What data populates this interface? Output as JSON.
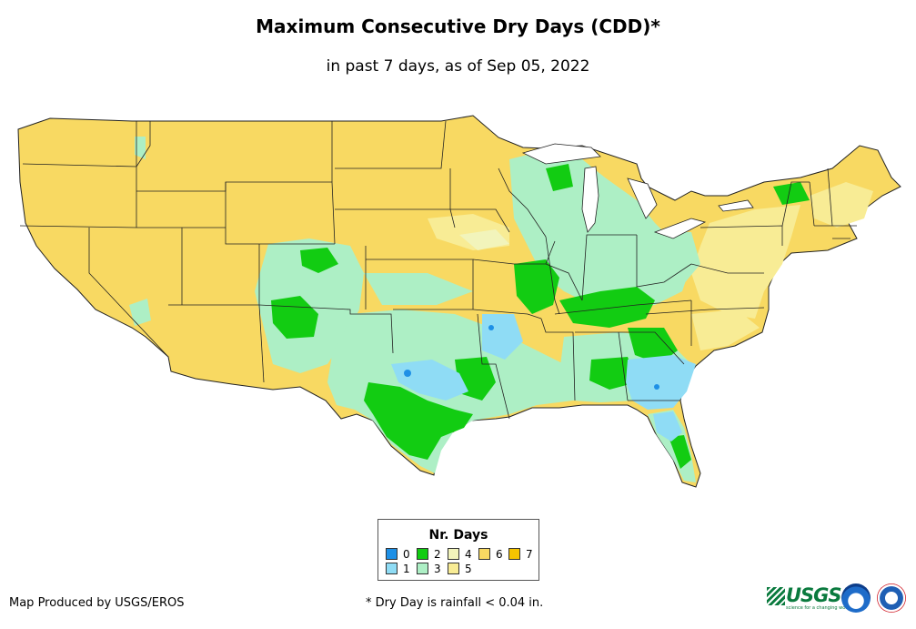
{
  "title": "Maximum Consecutive Dry Days (CDD)*",
  "subtitle": "in past 7 days, as of Sep 05, 2022",
  "legend": {
    "title": "Nr. Days",
    "items": [
      {
        "label": "0",
        "color": "#1e90e6"
      },
      {
        "label": "1",
        "color": "#8fdcf5"
      },
      {
        "label": "2",
        "color": "#12cc12"
      },
      {
        "label": "3",
        "color": "#adefc5"
      },
      {
        "label": "4",
        "color": "#f2f4bb"
      },
      {
        "label": "5",
        "color": "#f8ec95"
      },
      {
        "label": "6",
        "color": "#f8d962"
      },
      {
        "label": "7",
        "color": "#f5c400"
      }
    ]
  },
  "credit": "Map Produced by USGS/EROS",
  "footnote": "* Dry Day is rainfall < 0.04 in.",
  "logos": {
    "usgs": "USGS",
    "usgs_tagline": "science for a changing world",
    "noaa": "noaa-logo",
    "nws": "nws-logo"
  }
}
